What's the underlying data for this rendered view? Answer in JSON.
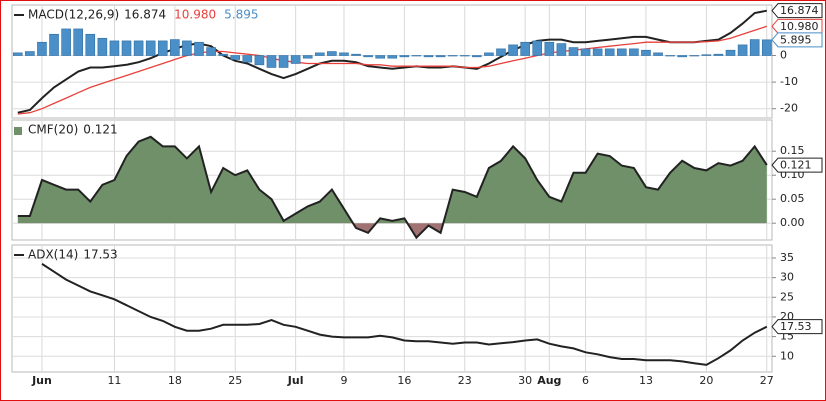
{
  "chart_data": [
    {
      "type": "line",
      "title": "MACD(12,26,9)",
      "ylim": [
        -23.5,
        19
      ],
      "yticks": [
        0,
        -10,
        -20
      ],
      "grid": true,
      "series": [
        {
          "type": "line",
          "color": "#222222",
          "label": "16.874",
          "values": [
            -21.5,
            -20.5,
            -16,
            -12,
            -9,
            -6,
            -4.5,
            -4.5,
            -4,
            -3.5,
            -2.5,
            -1,
            1,
            2.5,
            4,
            4.5,
            3.5,
            0,
            -2,
            -3,
            -5,
            -7,
            -8.5,
            -7,
            -5,
            -3,
            -2,
            -2,
            -2.5,
            -4,
            -4.5,
            -5,
            -4.5,
            -4,
            -4.5,
            -4.5,
            -4,
            -4.5,
            -5,
            -3,
            -0.5,
            2,
            4,
            5.5,
            6,
            6,
            5,
            5,
            5.5,
            6,
            6.5,
            7,
            7,
            6,
            5,
            5,
            5,
            5.5,
            6,
            8.5,
            12,
            16,
            16.874
          ]
        },
        {
          "type": "line",
          "color": "#e8413c",
          "label": "10.980",
          "values": [
            -22,
            -21.5,
            -20,
            -18,
            -16,
            -14,
            -12,
            -10.5,
            -9,
            -7.5,
            -6,
            -4.5,
            -3,
            -1.5,
            0,
            1,
            1.5,
            1.5,
            1,
            0.5,
            0,
            -1,
            -2,
            -2.5,
            -3,
            -3,
            -3,
            -3,
            -3,
            -3.5,
            -3.5,
            -4,
            -4,
            -4,
            -4,
            -4,
            -4,
            -4.5,
            -4.5,
            -4,
            -3,
            -2,
            -1,
            0,
            1,
            1.5,
            2,
            2.5,
            3,
            3.5,
            4,
            4.5,
            5,
            5,
            5,
            5,
            5,
            5.2,
            5.5,
            6.5,
            8,
            9.5,
            10.98
          ]
        },
        {
          "type": "bar",
          "color": "#4a8fc7",
          "label": "5.895",
          "values": [
            1,
            1.5,
            5,
            8,
            10,
            10,
            8,
            6.5,
            5.5,
            5.5,
            5.5,
            5.5,
            5.5,
            6,
            5.5,
            5,
            3,
            0.5,
            -1.5,
            -2.5,
            -3.5,
            -4.5,
            -4.5,
            -3,
            -1,
            1,
            1.5,
            1,
            0.5,
            -0.5,
            -1,
            -1,
            -0.5,
            0,
            -0.5,
            -0.5,
            0,
            0,
            -0.5,
            1,
            2.5,
            4,
            5,
            5.5,
            5,
            4.5,
            3,
            2.5,
            2.5,
            2.5,
            2.5,
            2.5,
            2,
            1,
            0,
            -0.5,
            0,
            0.3,
            0.5,
            2,
            4,
            6,
            5.895
          ]
        }
      ]
    },
    {
      "type": "area",
      "title": "CMF(20)",
      "ylim": [
        -0.035,
        0.215
      ],
      "grid": true,
      "yticks": [
        {
          "value": 0.15,
          "label": "0.15"
        },
        {
          "value": 0.1,
          "label": "0.10"
        },
        {
          "value": 0.05,
          "label": "0.05"
        },
        {
          "value": 0,
          "label": "0.00"
        }
      ],
      "fill_above": "#6f9068",
      "fill_below": "#a07272",
      "series": [
        {
          "type": "line",
          "color": "#222222",
          "label": "0.121",
          "values": [
            0.015,
            0.015,
            0.09,
            0.08,
            0.07,
            0.07,
            0.045,
            0.08,
            0.09,
            0.14,
            0.17,
            0.18,
            0.16,
            0.16,
            0.135,
            0.16,
            0.065,
            0.115,
            0.1,
            0.11,
            0.07,
            0.05,
            0.005,
            0.02,
            0.035,
            0.045,
            0.07,
            0.03,
            -0.01,
            -0.02,
            0.01,
            0.005,
            0.01,
            -0.03,
            -0.005,
            -0.02,
            0.07,
            0.065,
            0.055,
            0.115,
            0.13,
            0.16,
            0.135,
            0.09,
            0.055,
            0.045,
            0.105,
            0.105,
            0.145,
            0.14,
            0.12,
            0.115,
            0.075,
            0.07,
            0.105,
            0.13,
            0.115,
            0.11,
            0.125,
            0.12,
            0.13,
            0.16,
            0.121
          ]
        }
      ]
    },
    {
      "type": "line",
      "title": "ADX(14)",
      "ylim": [
        6,
        38.3
      ],
      "yticks": [
        35,
        30,
        25,
        20,
        15,
        10
      ],
      "grid": true,
      "categories": [
        null,
        null,
        "Jun",
        null,
        null,
        null,
        null,
        null,
        "11",
        null,
        null,
        null,
        null,
        "18",
        null,
        null,
        null,
        null,
        "25",
        null,
        null,
        null,
        null,
        "Jul",
        null,
        null,
        null,
        "9",
        null,
        null,
        null,
        null,
        "16",
        null,
        null,
        null,
        null,
        "23",
        null,
        null,
        null,
        null,
        "30",
        null,
        "Aug",
        null,
        null,
        "6",
        null,
        null,
        null,
        null,
        "13",
        null,
        null,
        null,
        null,
        "20",
        null,
        null,
        null,
        null,
        "27"
      ],
      "series": [
        {
          "type": "line",
          "color": "#222222",
          "label": "17.53",
          "values": [
            null,
            null,
            33.5,
            31.5,
            29.5,
            28,
            26.5,
            25.5,
            24.5,
            23,
            21.5,
            20,
            19,
            17.5,
            16.5,
            16.5,
            17,
            18,
            18,
            18,
            18.2,
            19.2,
            18,
            17.5,
            16.5,
            15.5,
            15,
            14.8,
            14.8,
            14.8,
            15.2,
            14.8,
            14,
            13.8,
            13.8,
            13.5,
            13.2,
            13.5,
            13.5,
            13,
            13.3,
            13.6,
            14,
            14.3,
            13.2,
            12.5,
            12,
            11,
            10.5,
            9.8,
            9.3,
            9.3,
            9,
            9,
            9,
            8.7,
            8.2,
            7.8,
            9.5,
            11.5,
            14,
            16,
            17.53
          ]
        }
      ]
    }
  ]
}
